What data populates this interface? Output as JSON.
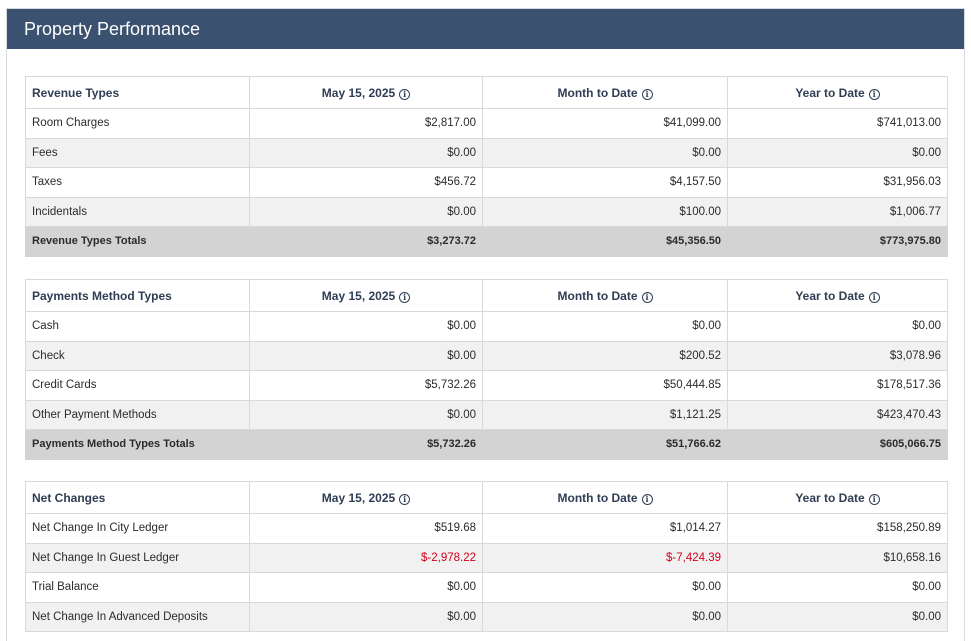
{
  "panel": {
    "title": "Property Performance"
  },
  "info_icon": "info-circle-icon",
  "colors": {
    "header_bg": "#3a5170",
    "negative": "#d0021b",
    "total_bg": "#d3d3d3"
  },
  "columns": {
    "date": "May 15, 2025",
    "mtd": "Month to Date",
    "ytd": "Year to Date"
  },
  "revenue": {
    "heading": "Revenue Types",
    "rows": [
      {
        "label": "Room Charges",
        "day": "$2,817.00",
        "mtd": "$41,099.00",
        "ytd": "$741,013.00"
      },
      {
        "label": "Fees",
        "day": "$0.00",
        "mtd": "$0.00",
        "ytd": "$0.00"
      },
      {
        "label": "Taxes",
        "day": "$456.72",
        "mtd": "$4,157.50",
        "ytd": "$31,956.03"
      },
      {
        "label": "Incidentals",
        "day": "$0.00",
        "mtd": "$100.00",
        "ytd": "$1,006.77"
      }
    ],
    "total": {
      "label": "Revenue Types Totals",
      "day": "$3,273.72",
      "mtd": "$45,356.50",
      "ytd": "$773,975.80"
    }
  },
  "payments": {
    "heading": "Payments Method Types",
    "rows": [
      {
        "label": "Cash",
        "day": "$0.00",
        "mtd": "$0.00",
        "ytd": "$0.00"
      },
      {
        "label": "Check",
        "day": "$0.00",
        "mtd": "$200.52",
        "ytd": "$3,078.96"
      },
      {
        "label": "Credit Cards",
        "day": "$5,732.26",
        "mtd": "$50,444.85",
        "ytd": "$178,517.36"
      },
      {
        "label": "Other Payment Methods",
        "day": "$0.00",
        "mtd": "$1,121.25",
        "ytd": "$423,470.43"
      }
    ],
    "total": {
      "label": "Payments Method Types Totals",
      "day": "$5,732.26",
      "mtd": "$51,766.62",
      "ytd": "$605,066.75"
    }
  },
  "net": {
    "heading": "Net Changes",
    "rows": [
      {
        "label": "Net Change In City Ledger",
        "day": "$519.68",
        "mtd": "$1,014.27",
        "ytd": "$158,250.89"
      },
      {
        "label": "Net Change In Guest Ledger",
        "day": "$-2,978.22",
        "mtd": "$-7,424.39",
        "ytd": "$10,658.16"
      },
      {
        "label": "Trial Balance",
        "day": "$0.00",
        "mtd": "$0.00",
        "ytd": "$0.00"
      },
      {
        "label": "Net Change In Advanced Deposits",
        "day": "$0.00",
        "mtd": "$0.00",
        "ytd": "$0.00"
      }
    ]
  }
}
